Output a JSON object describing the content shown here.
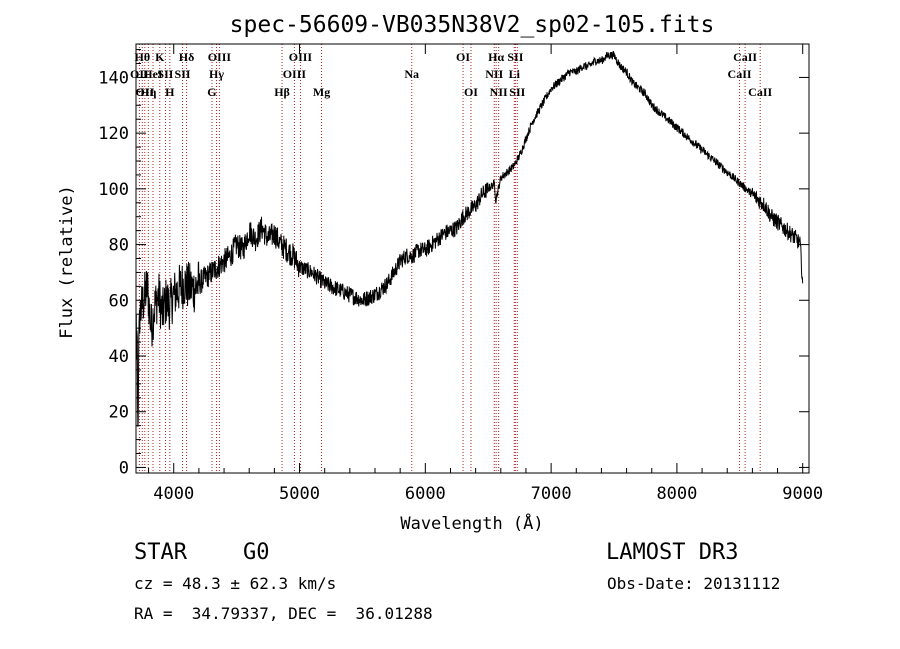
{
  "chart_data": {
    "type": "line",
    "title": "spec-56609-VB035N38V2_sp02-105.fits",
    "xlabel": "Wavelength (Å)",
    "ylabel": "Flux (relative)",
    "xlim": [
      3700,
      9050
    ],
    "ylim": [
      -2,
      152
    ],
    "xticks": [
      4000,
      5000,
      6000,
      7000,
      8000,
      9000
    ],
    "yticks": [
      0,
      20,
      40,
      60,
      80,
      100,
      120,
      140
    ],
    "series": [
      {
        "name": "spectrum",
        "x": [
          3700,
          3730,
          3760,
          3790,
          3820,
          3850,
          3880,
          3910,
          3940,
          3970,
          4000,
          4040,
          4080,
          4120,
          4160,
          4200,
          4250,
          4300,
          4350,
          4400,
          4450,
          4500,
          4550,
          4600,
          4650,
          4700,
          4750,
          4800,
          4850,
          4900,
          4950,
          5000,
          5100,
          5200,
          5300,
          5400,
          5500,
          5600,
          5700,
          5750,
          5800,
          5850,
          5900,
          5950,
          6000,
          6050,
          6100,
          6150,
          6200,
          6250,
          6300,
          6350,
          6400,
          6450,
          6500,
          6550,
          6560,
          6600,
          6650,
          6700,
          6750,
          6800,
          6850,
          6900,
          6950,
          7000,
          7050,
          7100,
          7150,
          7200,
          7250,
          7300,
          7350,
          7400,
          7450,
          7500,
          7550,
          7600,
          7650,
          7700,
          7750,
          7800,
          7850,
          7900,
          7950,
          8000,
          8050,
          8100,
          8150,
          8200,
          8250,
          8300,
          8350,
          8400,
          8450,
          8500,
          8550,
          8600,
          8650,
          8700,
          8750,
          8800,
          8850,
          8900,
          8950,
          8980,
          9000
        ],
        "y": [
          0,
          55,
          60,
          65,
          50,
          58,
          62,
          55,
          60,
          58,
          62,
          64,
          66,
          65,
          64,
          66,
          68,
          70,
          72,
          74,
          76,
          80,
          78,
          85,
          82,
          86,
          82,
          84,
          80,
          78,
          76,
          72,
          70,
          66,
          64,
          62,
          60,
          62,
          66,
          70,
          74,
          76,
          76,
          78,
          78,
          80,
          82,
          84,
          85,
          86,
          90,
          92,
          94,
          98,
          100,
          102,
          96,
          104,
          106,
          108,
          112,
          118,
          124,
          128,
          132,
          136,
          138,
          140,
          142,
          142,
          144,
          144,
          146,
          146,
          148,
          148,
          144,
          142,
          138,
          136,
          134,
          130,
          128,
          126,
          124,
          122,
          120,
          118,
          116,
          114,
          112,
          110,
          108,
          106,
          104,
          102,
          100,
          98,
          96,
          94,
          90,
          88,
          86,
          84,
          82,
          80,
          66
        ]
      }
    ],
    "spectral_lines": [
      {
        "wavelength": 3727,
        "label": "OII",
        "row": 2
      },
      {
        "wavelength": 3750,
        "label": "Hθ",
        "row": 1
      },
      {
        "wavelength": 3770,
        "label": "OII",
        "row": 3
      },
      {
        "wavelength": 3798,
        "label": "Hη",
        "row": 3
      },
      {
        "wavelength": 3835,
        "label": "HeI",
        "row": 2
      },
      {
        "wavelength": 3889,
        "label": "K",
        "row": 1
      },
      {
        "wavelength": 3934,
        "label": "SII",
        "row": 2
      },
      {
        "wavelength": 3969,
        "label": "H",
        "row": 3
      },
      {
        "wavelength": 4102,
        "label": "Hδ",
        "row": 1
      },
      {
        "wavelength": 4070,
        "label": "SII",
        "row": 2
      },
      {
        "wavelength": 4304,
        "label": "G",
        "row": 3
      },
      {
        "wavelength": 4340,
        "label": "Hγ",
        "row": 2
      },
      {
        "wavelength": 4363,
        "label": "OIII",
        "row": 1
      },
      {
        "wavelength": 4861,
        "label": "Hβ",
        "row": 3
      },
      {
        "wavelength": 4959,
        "label": "OIII",
        "row": 2
      },
      {
        "wavelength": 5007,
        "label": "OIII",
        "row": 1
      },
      {
        "wavelength": 5175,
        "label": "Mg",
        "row": 3
      },
      {
        "wavelength": 5892,
        "label": "Na",
        "row": 2
      },
      {
        "wavelength": 6300,
        "label": "OI",
        "row": 1
      },
      {
        "wavelength": 6363,
        "label": "OI",
        "row": 3
      },
      {
        "wavelength": 6548,
        "label": "NII",
        "row": 2
      },
      {
        "wavelength": 6563,
        "label": "Hα",
        "row": 1
      },
      {
        "wavelength": 6583,
        "label": "NII",
        "row": 3
      },
      {
        "wavelength": 6707,
        "label": "Li",
        "row": 2
      },
      {
        "wavelength": 6716,
        "label": "SII",
        "row": 1
      },
      {
        "wavelength": 6731,
        "label": "SII",
        "row": 3
      },
      {
        "wavelength": 8498,
        "label": "CaII",
        "row": 2
      },
      {
        "wavelength": 8542,
        "label": "CaII",
        "row": 1
      },
      {
        "wavelength": 8662,
        "label": "CaII",
        "row": 3
      }
    ]
  },
  "info": {
    "class": "STAR",
    "subclass": "G0",
    "survey": "LAMOST DR3",
    "cz": "cz = 48.3 ± 62.3 km/s",
    "obs_date": "Obs-Date: 20131112",
    "coords": "RA =  34.79337, DEC =  36.01288"
  },
  "colors": {
    "line_marker": "#b22222",
    "spectrum": "#000000",
    "axes": "#000000"
  }
}
